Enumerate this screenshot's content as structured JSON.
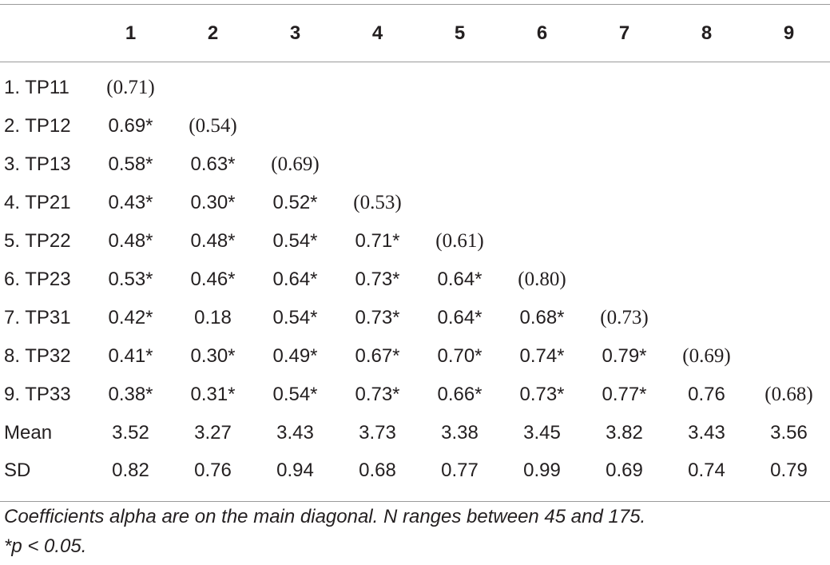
{
  "table": {
    "header": [
      "1",
      "2",
      "3",
      "4",
      "5",
      "6",
      "7",
      "8",
      "9"
    ],
    "rows": [
      {
        "label": "1. TP11",
        "cells": [
          "(0.71)"
        ]
      },
      {
        "label": "2. TP12",
        "cells": [
          "0.69*",
          "(0.54)"
        ]
      },
      {
        "label": "3. TP13",
        "cells": [
          "0.58*",
          "0.63*",
          "(0.69)"
        ]
      },
      {
        "label": "4. TP21",
        "cells": [
          "0.43*",
          "0.30*",
          "0.52*",
          "(0.53)"
        ]
      },
      {
        "label": "5. TP22",
        "cells": [
          "0.48*",
          "0.48*",
          "0.54*",
          "0.71*",
          "(0.61)"
        ]
      },
      {
        "label": "6. TP23",
        "cells": [
          "0.53*",
          "0.46*",
          "0.64*",
          "0.73*",
          "0.64*",
          "(0.80)"
        ]
      },
      {
        "label": "7. TP31",
        "cells": [
          "0.42*",
          "0.18",
          "0.54*",
          "0.73*",
          "0.64*",
          "0.68*",
          "(0.73)"
        ]
      },
      {
        "label": "8. TP32",
        "cells": [
          "0.41*",
          "0.30*",
          "0.49*",
          "0.67*",
          "0.70*",
          "0.74*",
          "0.79*",
          "(0.69)"
        ]
      },
      {
        "label": "9. TP33",
        "cells": [
          "0.38*",
          "0.31*",
          "0.54*",
          "0.73*",
          "0.66*",
          "0.73*",
          "0.77*",
          "0.76",
          "(0.68)"
        ]
      },
      {
        "label": "Mean",
        "cells": [
          "3.52",
          "3.27",
          "3.43",
          "3.73",
          "3.38",
          "3.45",
          "3.82",
          "3.43",
          "3.56"
        ]
      },
      {
        "label": "SD",
        "cells": [
          "0.82",
          "0.76",
          "0.94",
          "0.68",
          "0.77",
          "0.99",
          "0.69",
          "0.74",
          "0.79"
        ]
      }
    ]
  },
  "notes": [
    "Coefficients alpha are on the main diagonal. N ranges between 45 and 175.",
    "*p < 0.05."
  ]
}
